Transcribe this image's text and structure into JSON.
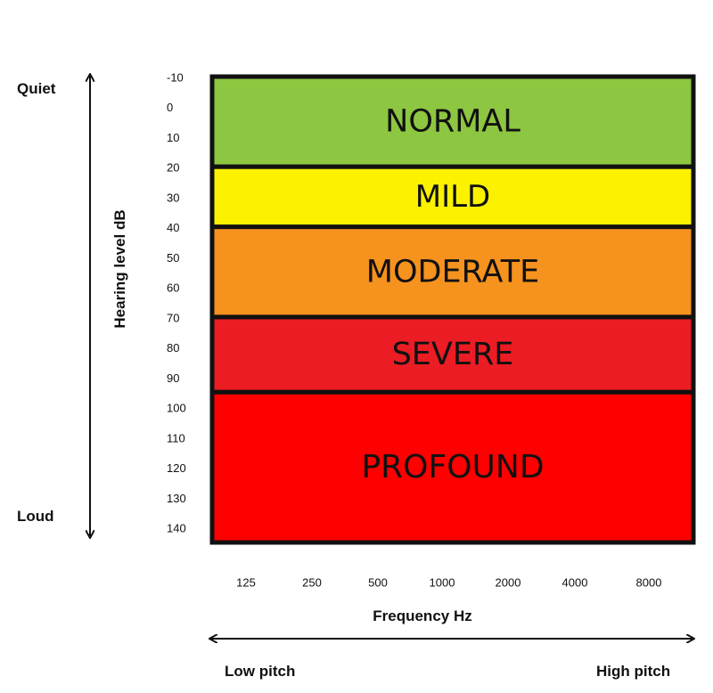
{
  "chart_data": {
    "type": "bar",
    "title": "",
    "ylabel": "Hearing level dB",
    "xlabel": "Frequency Hz",
    "y_ticks": [
      "-10",
      "0",
      "10",
      "20",
      "30",
      "40",
      "50",
      "60",
      "70",
      "80",
      "90",
      "100",
      "110",
      "120",
      "130",
      "140"
    ],
    "x_ticks": [
      "125",
      "250",
      "500",
      "1000",
      "2000",
      "4000",
      "8000"
    ],
    "ylim": [
      -10,
      145
    ],
    "y_direction": "inverted",
    "bands": [
      {
        "label": "NORMAL",
        "from": -10,
        "to": 20,
        "color": "#8dc641"
      },
      {
        "label": "MILD",
        "from": 20,
        "to": 40,
        "color": "#fcf200"
      },
      {
        "label": "MODERATE",
        "from": 40,
        "to": 70,
        "color": "#f6921e"
      },
      {
        "label": "SEVERE",
        "from": 70,
        "to": 95,
        "color": "#ec1c24"
      },
      {
        "label": "PROFOUND",
        "from": 95,
        "to": 145,
        "color": "#fe0000"
      }
    ]
  },
  "annotations": {
    "quiet": "Quiet",
    "loud": "Loud",
    "low_pitch": "Low pitch",
    "high_pitch": "High pitch"
  }
}
